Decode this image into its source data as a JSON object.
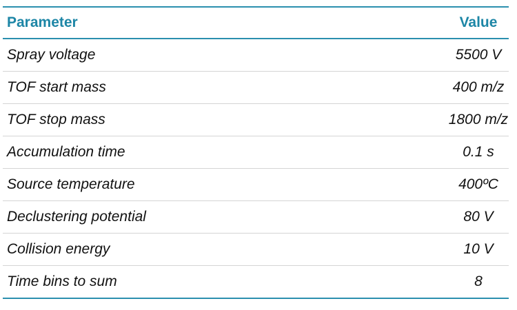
{
  "table": {
    "header": [
      "Parameter",
      "Value"
    ],
    "rows": [
      [
        "Spray voltage",
        "5500 V"
      ],
      [
        "TOF start mass",
        "400 m/z"
      ],
      [
        "TOF stop mass",
        "1800 m/z"
      ],
      [
        "Accumulation time",
        "0.1 s"
      ],
      [
        "Source temperature",
        "400ºC"
      ],
      [
        "Declustering potential",
        "80 V"
      ],
      [
        "Collision energy",
        "10 V"
      ],
      [
        "Time bins to sum",
        "8"
      ]
    ]
  }
}
